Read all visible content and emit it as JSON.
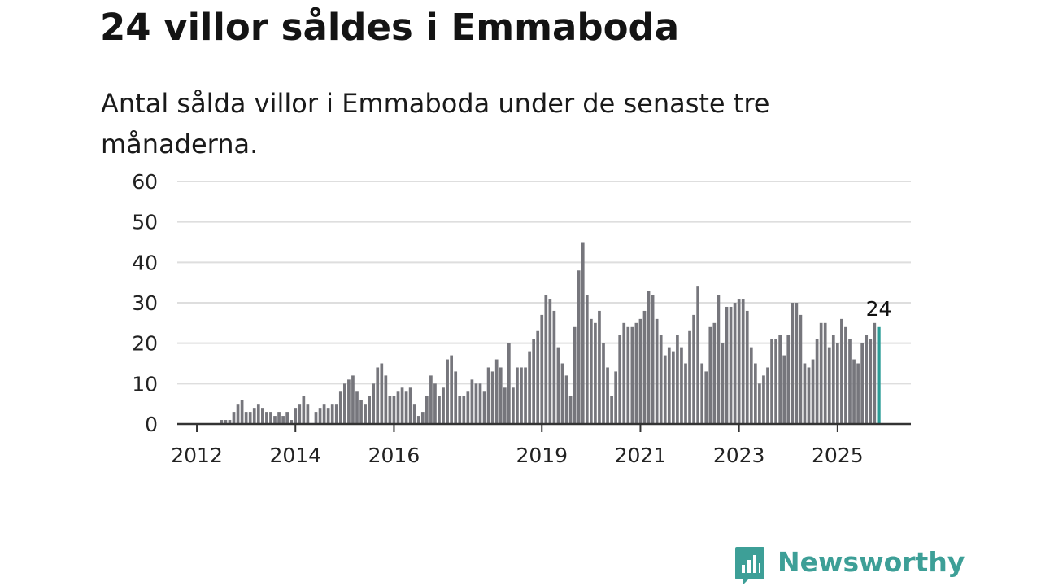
{
  "title": "24 villor såldes i Emmaboda",
  "subtitle": "Antal sålda villor i Emmaboda under de senaste tre månaderna.",
  "brand": {
    "name": "Newsworthy",
    "color": "#3d9f97",
    "icon": "bar-chart-speech-bubble-icon"
  },
  "chart_data": {
    "type": "bar",
    "title": "",
    "xlabel": "",
    "ylabel": "",
    "ylim": [
      0,
      60
    ],
    "yticks": [
      0,
      10,
      20,
      30,
      40,
      50,
      60
    ],
    "xtick_labels": [
      "2012",
      "2014",
      "2016",
      "2019",
      "2021",
      "2023",
      "2025"
    ],
    "grid": "horizontal",
    "bar_color": "#76767c",
    "highlight_color": "#2a9d97",
    "highlight_label": "24",
    "x_start": "2011-09",
    "x_end": "2025-07",
    "values": [
      0,
      0,
      0,
      0,
      0,
      0,
      0,
      0,
      0,
      0,
      1,
      1,
      1,
      3,
      5,
      6,
      3,
      3,
      4,
      5,
      4,
      3,
      3,
      2,
      3,
      2,
      3,
      1,
      4,
      5,
      7,
      5,
      0,
      3,
      4,
      5,
      4,
      5,
      5,
      8,
      10,
      11,
      12,
      8,
      6,
      5,
      7,
      10,
      14,
      15,
      12,
      7,
      7,
      8,
      9,
      8,
      9,
      5,
      2,
      3,
      7,
      12,
      10,
      7,
      9,
      16,
      17,
      13,
      7,
      7,
      8,
      11,
      10,
      10,
      8,
      14,
      13,
      16,
      14,
      9,
      20,
      9,
      14,
      14,
      14,
      18,
      21,
      23,
      27,
      32,
      31,
      28,
      19,
      15,
      12,
      7,
      24,
      38,
      45,
      32,
      26,
      25,
      28,
      20,
      14,
      7,
      13,
      22,
      25,
      24,
      24,
      25,
      26,
      28,
      33,
      32,
      26,
      22,
      17,
      19,
      18,
      22,
      19,
      15,
      23,
      27,
      34,
      15,
      13,
      24,
      25,
      32,
      20,
      29,
      29,
      30,
      31,
      31,
      28,
      19,
      15,
      10,
      12,
      14,
      21,
      21,
      22,
      17,
      22,
      30,
      30,
      27,
      15,
      14,
      16,
      21,
      25,
      25,
      19,
      22,
      20,
      26,
      24,
      21,
      16,
      15,
      20,
      22,
      21,
      25,
      24
    ]
  }
}
